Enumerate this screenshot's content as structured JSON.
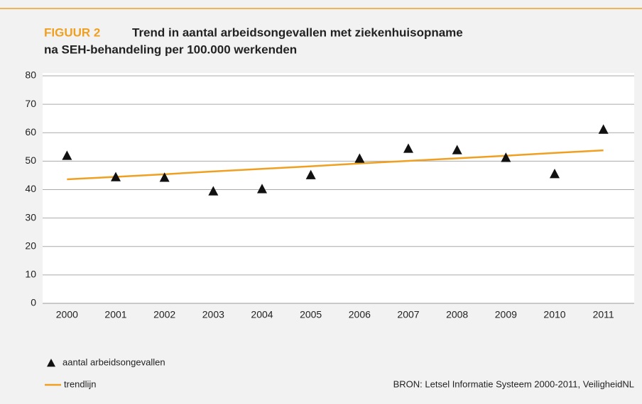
{
  "chart_data": {
    "type": "scatter",
    "figure_label": "FIGUUR 2",
    "title": "Trend in aantal arbeidsongevallen met ziekenhuisopname",
    "subtitle": "na SEH-behandeling per 100.000 werkenden",
    "categories": [
      "2000",
      "2001",
      "2002",
      "2003",
      "2004",
      "2005",
      "2006",
      "2007",
      "2008",
      "2009",
      "2010",
      "2011"
    ],
    "series": [
      {
        "name": "aantal arbeidsongevallen",
        "color": "#111111",
        "marker": "triangle",
        "values": [
          52,
          44.5,
          44.3,
          39.5,
          40.3,
          45.2,
          51,
          54.5,
          54,
          51.3,
          45.6,
          61.2
        ]
      },
      {
        "name": "trendlijn",
        "color": "#f0a020",
        "marker": "line",
        "values": [
          43.6,
          44.5,
          45.4,
          46.4,
          47.3,
          48.2,
          49.2,
          50.1,
          51.0,
          51.9,
          52.9,
          53.8
        ]
      }
    ],
    "ylim": [
      0,
      80
    ],
    "yticks": [
      0,
      10,
      20,
      30,
      40,
      50,
      60,
      70,
      80
    ],
    "grid": true,
    "source": "BRON: Letsel Informatie Systeem 2000-2011, VeiligheidNL"
  }
}
